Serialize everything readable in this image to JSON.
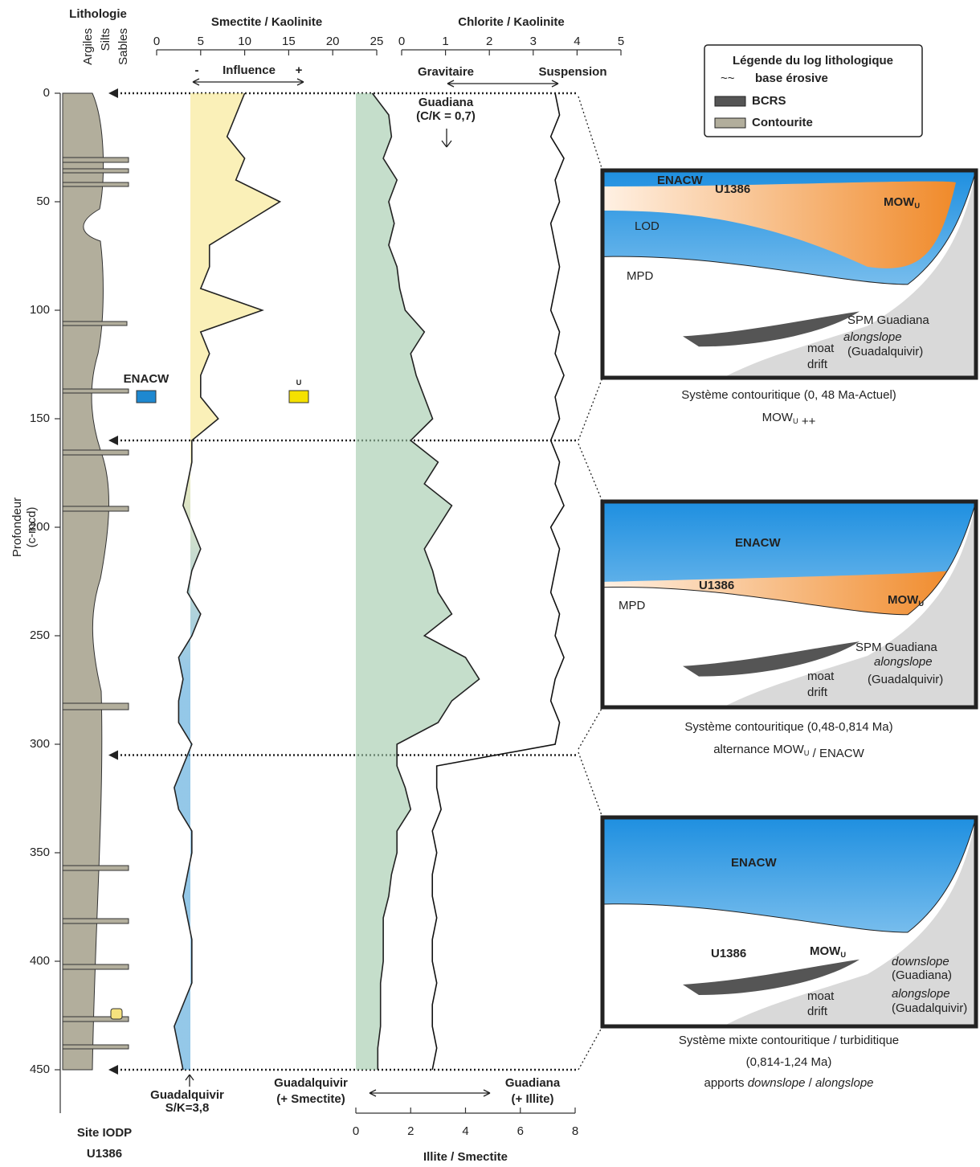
{
  "lithology": {
    "title": "Lithologie",
    "columns": [
      "Argiles",
      "Silts",
      "Sables"
    ]
  },
  "site": [
    "Site IODP",
    "U1386"
  ],
  "chart_data": [
    {
      "type": "line",
      "title": "Smectite / Kaolinite",
      "ylabel": [
        "Profondeur",
        "(c-mcd)"
      ],
      "y": [
        0,
        10,
        20,
        30,
        40,
        50,
        60,
        70,
        80,
        90,
        100,
        110,
        120,
        130,
        140,
        150,
        160,
        170,
        180,
        190,
        200,
        210,
        220,
        230,
        240,
        250,
        260,
        270,
        280,
        290,
        300,
        310,
        320,
        330,
        340,
        350,
        360,
        370,
        380,
        390,
        400,
        410,
        420,
        430,
        440,
        450
      ],
      "ylim": [
        0,
        470
      ],
      "yticks": [
        0,
        50,
        100,
        150,
        200,
        250,
        300,
        350,
        400,
        450
      ],
      "y_inverted": true,
      "xlim": [
        0,
        25
      ],
      "xticks": [
        0,
        5,
        10,
        15,
        20,
        25
      ],
      "values": [
        10,
        9,
        8,
        10,
        9,
        14,
        10,
        6,
        6,
        5,
        12,
        5,
        6,
        5,
        5,
        7,
        4,
        4,
        3.5,
        3,
        4,
        5,
        4,
        3.5,
        5,
        4,
        2.5,
        3,
        2.5,
        2.5,
        4,
        3,
        2,
        2.5,
        4,
        4,
        3.5,
        3,
        3.5,
        4,
        4,
        4,
        3,
        2,
        2.5,
        3
      ],
      "color": "#222",
      "fill_top": "#f5e47e",
      "fill_bottom": "#3d9ad6",
      "horizons": [
        0,
        160,
        305,
        450
      ],
      "annotations": {
        "minus": "-",
        "influence": "Influence",
        "plus": "+",
        "source": [
          "Guadalquivir",
          "S/K=3,8"
        ]
      },
      "water_masses": [
        {
          "name": "ENACW",
          "color": "#1e88d0"
        },
        {
          "name": "MOW",
          "sub": "U",
          "color": "#f5e100"
        }
      ]
    },
    {
      "type": "line",
      "title": "Chlorite / Kaolinite",
      "y": [
        0,
        10,
        20,
        30,
        40,
        50,
        60,
        70,
        80,
        90,
        100,
        110,
        120,
        130,
        140,
        150,
        160,
        170,
        180,
        190,
        200,
        210,
        220,
        230,
        240,
        250,
        260,
        270,
        280,
        290,
        300,
        310,
        320,
        330,
        340,
        350,
        360,
        370,
        380,
        390,
        400,
        410,
        420,
        430,
        440,
        450
      ],
      "ylim": [
        0,
        470
      ],
      "xlim": [
        0,
        5
      ],
      "xticks": [
        0,
        1,
        2,
        3,
        4,
        5
      ],
      "values": [
        3.5,
        3.6,
        3.4,
        3.7,
        3.5,
        3.6,
        3.4,
        3.5,
        3.6,
        3.5,
        3.4,
        3.6,
        3.5,
        3.7,
        3.5,
        3.6,
        3.4,
        3.6,
        3.5,
        3.7,
        3.4,
        3.6,
        3.5,
        3.4,
        3.6,
        3.5,
        3.7,
        3.5,
        3.4,
        3.6,
        3.5,
        0.8,
        0.8,
        0.9,
        0.7,
        0.8,
        0.7,
        0.7,
        0.8,
        0.7,
        0.7,
        0.8,
        0.7,
        0.7,
        0.8,
        0.7
      ],
      "color": "#111",
      "annotations": {
        "left": "Gravitaire",
        "right": "Suspension",
        "source": [
          "Guadiana",
          "(C/K = 0,7)"
        ]
      }
    },
    {
      "type": "line",
      "title": "Illite / Smectite",
      "y": [
        0,
        10,
        20,
        30,
        40,
        50,
        60,
        70,
        80,
        90,
        100,
        110,
        120,
        130,
        140,
        150,
        160,
        170,
        180,
        190,
        200,
        210,
        220,
        230,
        240,
        250,
        260,
        270,
        280,
        290,
        300,
        310,
        320,
        330,
        340,
        350,
        360,
        370,
        380,
        390,
        400,
        410,
        420,
        430,
        440,
        450
      ],
      "ylim": [
        0,
        470
      ],
      "xlim": [
        0,
        8
      ],
      "xticks": [
        0,
        2,
        4,
        6,
        8
      ],
      "values": [
        0.6,
        1.2,
        1.3,
        1,
        1.5,
        1.2,
        1.4,
        1.2,
        1.5,
        1.6,
        1.8,
        2.5,
        2,
        2.2,
        2.5,
        2.8,
        2,
        3,
        2.5,
        3.5,
        3,
        2.5,
        2.8,
        3,
        3.5,
        2.5,
        4,
        4.5,
        3.5,
        3,
        1.5,
        1.5,
        1.8,
        2,
        1.5,
        1.5,
        1.3,
        1.2,
        1,
        1,
        1,
        0.9,
        0.9,
        0.9,
        0.8,
        0.8
      ],
      "color": "#222",
      "fill": "#9fc8a8",
      "annotations": {
        "left": [
          "Guadalquivir",
          "(+ Smectite)"
        ],
        "right": [
          "Guadiana",
          "(+ Illite)"
        ]
      }
    }
  ],
  "legend": {
    "title": "Légende du log lithologique",
    "items": [
      "base érosive",
      "BCRS",
      "Contourite"
    ]
  },
  "panels": [
    {
      "labels": [
        "ENACW",
        "U1386",
        "LOD",
        "MPD",
        "SPM Guadiana",
        "alongslope",
        "(Guadalquivir)",
        "moat",
        "drift"
      ],
      "mow": {
        "text": "MOW",
        "sub": "U"
      },
      "caption": [
        [
          "Système contouritique (0, 48 Ma-Actuel)"
        ],
        [
          "MOW",
          {
            "sub": "U"
          },
          " ++"
        ]
      ]
    },
    {
      "labels": [
        "ENACW",
        "U1386",
        "MPD",
        "SPM Guadiana",
        "alongslope",
        "(Guadalquivir)",
        "moat",
        "drift"
      ],
      "mow": {
        "text": "MOW",
        "sub": "U"
      },
      "caption": [
        [
          "Système contouritique (0,48-0,814 Ma)"
        ],
        [
          "alternance MOW",
          {
            "sub": "U"
          },
          " / ENACW"
        ]
      ]
    },
    {
      "labels": [
        "ENACW",
        "U1386",
        "downslope",
        "(Guadiana)",
        "alongslope",
        "(Guadalquivir)",
        "moat",
        "drift"
      ],
      "mow": {
        "text": "MOW",
        "sub": "U"
      },
      "caption": [
        [
          "Système mixte contouritique / turbiditique"
        ],
        [
          "(0,814-1,24 Ma)"
        ],
        [
          "apports ",
          {
            "i": "downslope"
          },
          " / ",
          {
            "i": "alongslope"
          }
        ]
      ]
    }
  ]
}
